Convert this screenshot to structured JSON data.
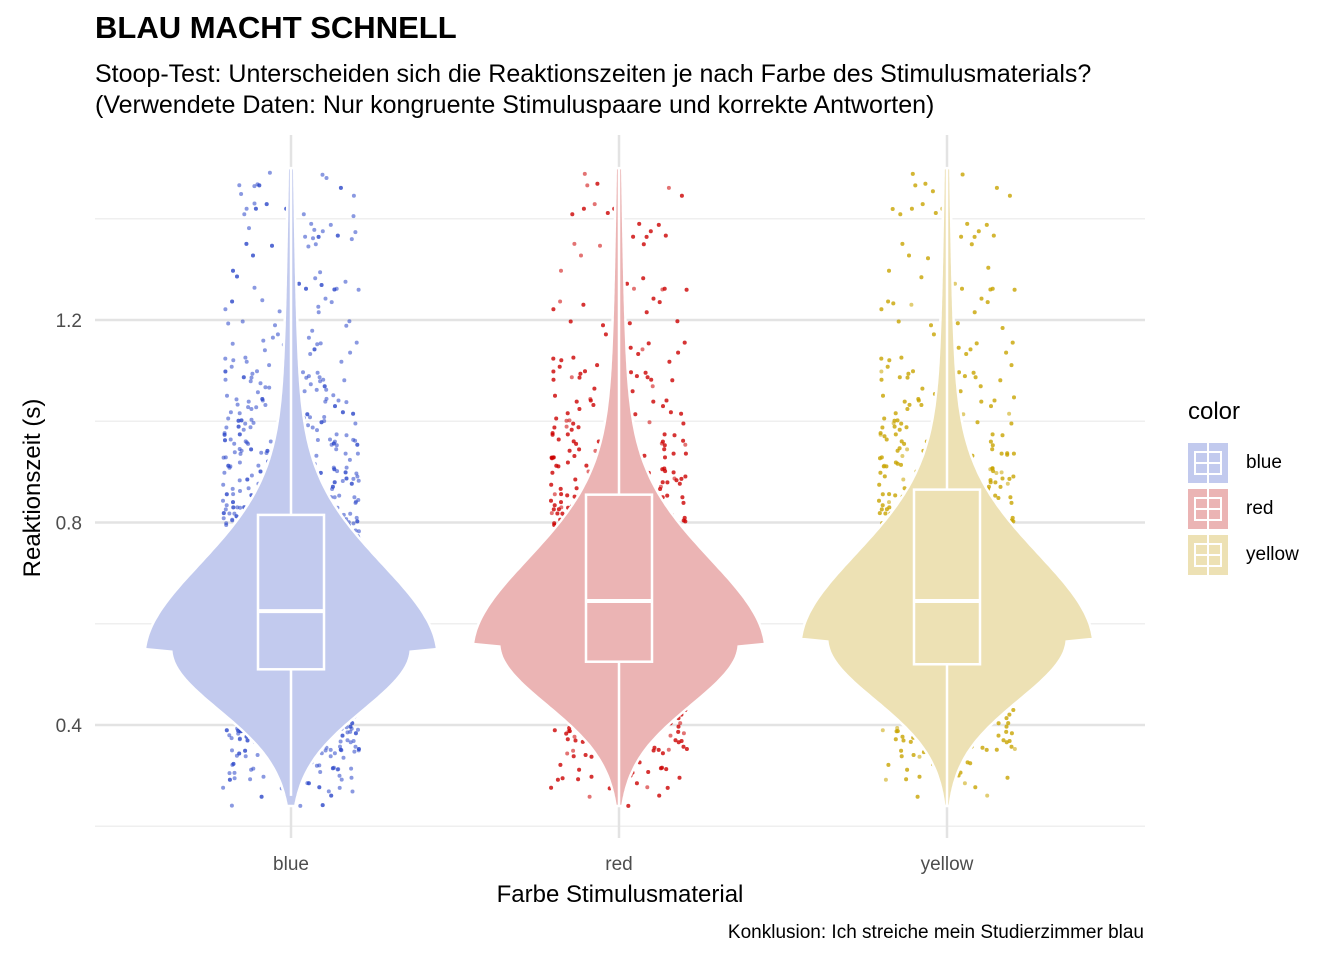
{
  "title": "BLAU MACHT SCHNELL",
  "subtitle_line1": "Stoop-Test: Unterscheiden sich die Reaktionszeiten je nach Farbe des Stimulusmaterials?",
  "subtitle_line2": "(Verwendete Daten: Nur kongruente Stimuluspaare und korrekte Antworten)",
  "caption": "Konklusion: Ich streiche mein Studierzimmer blau",
  "chart_data": {
    "type": "violin",
    "xlabel": "Farbe Stimulusmaterial",
    "ylabel": "Reaktionszeit (s)",
    "ylim": [
      0.18,
      1.56
    ],
    "y_ticks": [
      0.4,
      0.8,
      1.2
    ],
    "y_tick_labels": [
      "0.4",
      "0.8",
      "1.2"
    ],
    "grid": true,
    "legend_title": "color",
    "legend_position": "right",
    "categories": [
      "blue",
      "red",
      "yellow"
    ],
    "colors": {
      "blue": "#2a45c8",
      "red": "#cc0000",
      "yellow": "#c9a400"
    },
    "violin_fill": {
      "blue": "#c2caee",
      "red": "#ebb4b4",
      "yellow": "#ede1b4"
    },
    "boxplots": [
      {
        "name": "blue",
        "q1": 0.51,
        "median": 0.625,
        "q3": 0.815,
        "whisker_low": 0.26,
        "whisker_high": 1.5
      },
      {
        "name": "red",
        "q1": 0.525,
        "median": 0.645,
        "q3": 0.855,
        "whisker_low": 0.24,
        "whisker_high": 1.5
      },
      {
        "name": "yellow",
        "q1": 0.52,
        "median": 0.645,
        "q3": 0.865,
        "whisker_low": 0.24,
        "whisker_high": 1.5
      }
    ],
    "density_mode": [
      {
        "name": "blue",
        "mode": 0.55
      },
      {
        "name": "red",
        "mode": 0.56
      },
      {
        "name": "yellow",
        "mode": 0.57
      }
    ]
  }
}
